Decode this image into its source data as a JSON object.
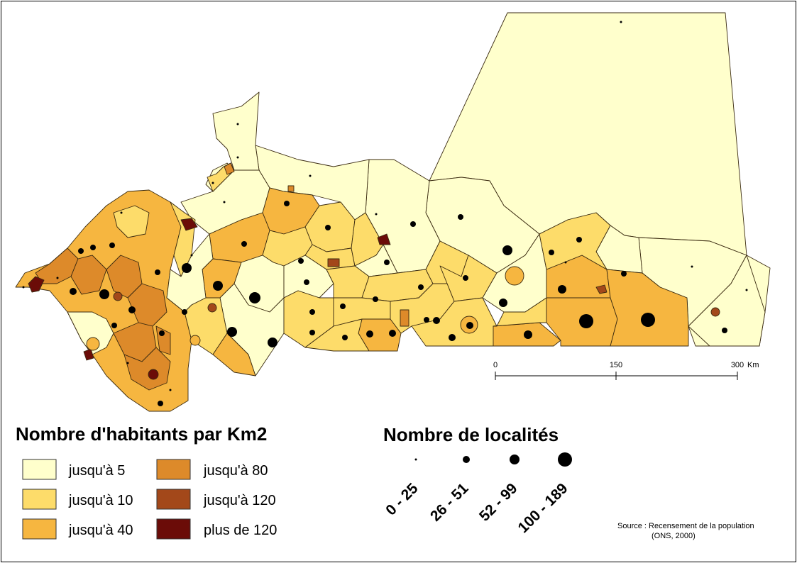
{
  "map": {
    "colors": {
      "class1": "#ffffcc",
      "class2": "#fddc6a",
      "class3": "#f6b640",
      "class4": "#dd8a2a",
      "class5": "#a3481a",
      "class6": "#6b0c08"
    }
  },
  "density_legend": {
    "title": "Nombre d'habitants par Km2",
    "classes": [
      {
        "label": "jusqu'à 5",
        "color": "#ffffcc"
      },
      {
        "label": "jusqu'à 10",
        "color": "#fddc6a"
      },
      {
        "label": "jusqu'à 40",
        "color": "#f6b640"
      },
      {
        "label": "jusqu'à 80",
        "color": "#dd8a2a"
      },
      {
        "label": "jusqu'à 120",
        "color": "#a3481a"
      },
      {
        "label": "plus de 120",
        "color": "#6b0c08"
      }
    ]
  },
  "localities_legend": {
    "title": "Nombre de localités",
    "classes": [
      {
        "label": "0 - 25"
      },
      {
        "label": "26 - 51"
      },
      {
        "label": "52 - 99"
      },
      {
        "label": "100 - 189"
      }
    ]
  },
  "scale_bar": {
    "ticks": [
      "0",
      "150",
      "300"
    ],
    "unit": "Km"
  },
  "source": {
    "line1": "Source : Recensement de la population",
    "line2": "(ONS, 2000)"
  }
}
